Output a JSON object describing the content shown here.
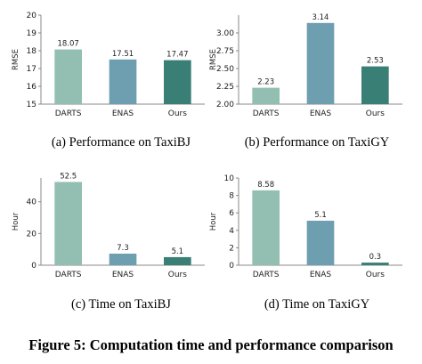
{
  "figure_caption": "Figure 5: Computation time and performance comparison",
  "colors": {
    "DARTS": "#93bfb3",
    "ENAS": "#6e9fb0",
    "Ours": "#3a7f75",
    "axis": "#888888",
    "grid": "#e6e6e6"
  },
  "chart_data": [
    {
      "type": "bar",
      "caption": "(a)  Performance on TaxiBJ",
      "ylabel": "RMSE",
      "categories": [
        "DARTS",
        "ENAS",
        "Ours"
      ],
      "values": [
        18.07,
        17.51,
        17.47
      ],
      "value_labels": [
        "18.07",
        "17.51",
        "17.47"
      ],
      "ylim": [
        15,
        20
      ],
      "yticks": [
        15,
        16,
        17,
        18,
        19,
        20
      ],
      "ytick_labels": [
        "15",
        "16",
        "17",
        "18",
        "19",
        "20"
      ]
    },
    {
      "type": "bar",
      "caption": "(b)  Performance on TaxiGY",
      "ylabel": "RMSE",
      "categories": [
        "DARTS",
        "ENAS",
        "Ours"
      ],
      "values": [
        2.23,
        3.14,
        2.53
      ],
      "value_labels": [
        "2.23",
        "3.14",
        "2.53"
      ],
      "ylim": [
        2.0,
        3.25
      ],
      "yticks": [
        2.0,
        2.25,
        2.5,
        2.75,
        3.0
      ],
      "ytick_labels": [
        "2.00",
        "2.25",
        "2.50",
        "2.75",
        "3.00"
      ]
    },
    {
      "type": "bar",
      "caption": "(c)  Time on TaxiBJ",
      "ylabel": "Hour",
      "categories": [
        "DARTS",
        "ENAS",
        "Ours"
      ],
      "values": [
        52.5,
        7.3,
        5.1
      ],
      "value_labels": [
        "52.5",
        "7.3",
        "5.1"
      ],
      "ylim": [
        0,
        55
      ],
      "yticks": [
        0,
        20,
        40
      ],
      "ytick_labels": [
        "0",
        "20",
        "40"
      ]
    },
    {
      "type": "bar",
      "caption": "(d)  Time on TaxiGY",
      "ylabel": "Hour",
      "categories": [
        "DARTS",
        "ENAS",
        "Ours"
      ],
      "values": [
        8.58,
        5.1,
        0.3
      ],
      "value_labels": [
        "8.58",
        "5.1",
        "0.3"
      ],
      "ylim": [
        0,
        10
      ],
      "yticks": [
        0,
        2,
        4,
        6,
        8,
        10
      ],
      "ytick_labels": [
        "0",
        "2",
        "4",
        "6",
        "8",
        "10"
      ]
    }
  ]
}
